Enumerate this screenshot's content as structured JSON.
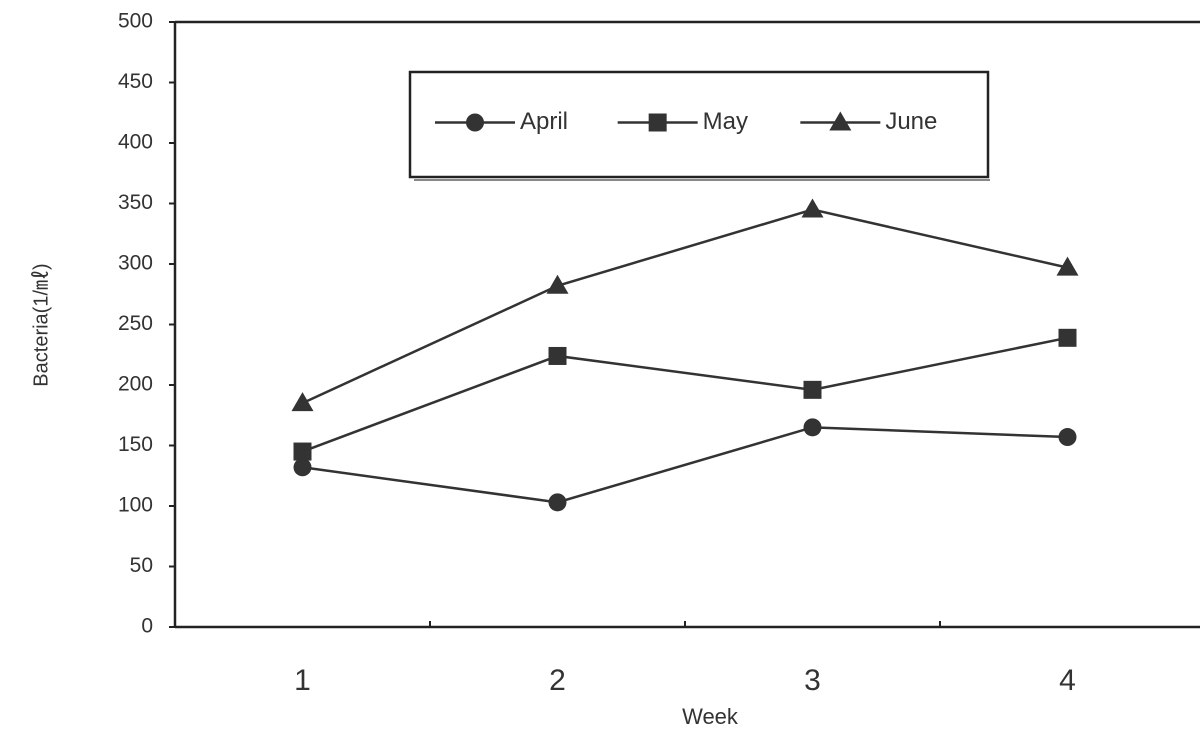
{
  "chart_data": {
    "type": "line",
    "x_label": "Week",
    "y_label": "Bacteria(1/㎖)",
    "categories": [
      "1",
      "2",
      "3",
      "4"
    ],
    "series": [
      {
        "name": "April",
        "color": "#333333",
        "marker": "circle",
        "values": [
          132,
          103,
          165,
          157
        ]
      },
      {
        "name": "May",
        "color": "#333333",
        "marker": "square",
        "values": [
          145,
          224,
          196,
          239
        ]
      },
      {
        "name": "June",
        "color": "#333333",
        "marker": "triangle",
        "values": [
          185,
          282,
          345,
          297
        ]
      }
    ],
    "ylim": [
      0,
      500
    ],
    "yticks": [
      0,
      50,
      100,
      150,
      200,
      250,
      300,
      350,
      400,
      450,
      500
    ],
    "grid": false,
    "legend": "top"
  }
}
